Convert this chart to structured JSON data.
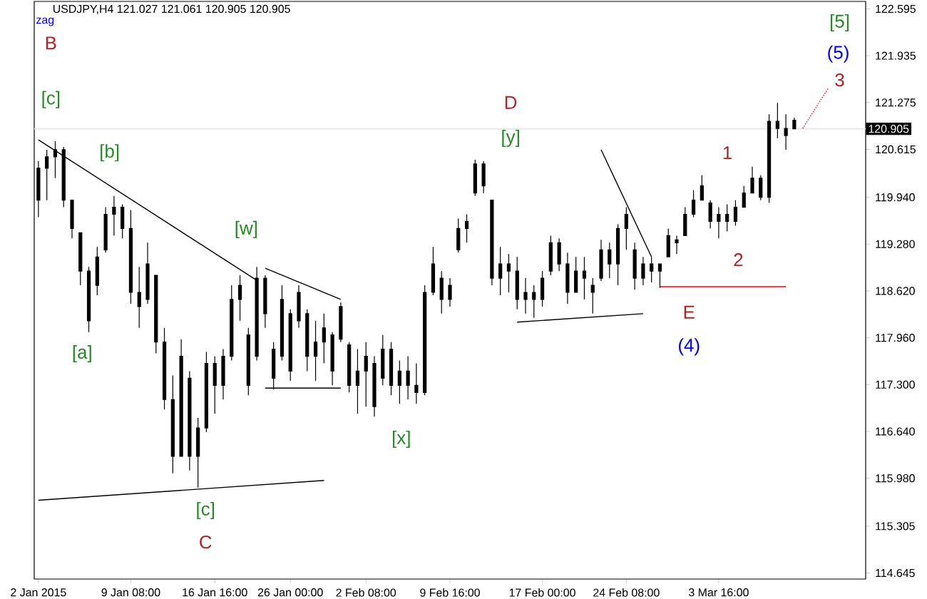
{
  "chart_data": {
    "type": "candlestick",
    "title": "USDJPY,H4  121.027 121.061 120.905 120.905",
    "color": "#000000",
    "categories": [
      "2 Jan 2015",
      null,
      null,
      null,
      null,
      null,
      null,
      null,
      null,
      null,
      null,
      "9 Jan 08:00",
      null,
      null,
      null,
      null,
      null,
      null,
      null,
      null,
      null,
      "16 Jan 16:00",
      null,
      null,
      null,
      null,
      null,
      null,
      null,
      null,
      "26 Jan 00:00",
      null,
      null,
      null,
      null,
      null,
      null,
      null,
      null,
      "2 Feb 08:00",
      null,
      null,
      null,
      null,
      null,
      null,
      null,
      null,
      null,
      "9 Feb 16:00",
      null,
      null,
      null,
      null,
      null,
      null,
      null,
      null,
      null,
      null,
      "17 Feb 00:00",
      null,
      null,
      null,
      null,
      null,
      null,
      null,
      null,
      null,
      "24 Feb 08:00",
      null,
      null,
      null,
      null,
      null,
      null,
      null,
      null,
      null,
      null,
      "3 Mar 16:00",
      null,
      null,
      null,
      null,
      null,
      null,
      null,
      null,
      null,
      null,
      null,
      null,
      null,
      null,
      null,
      null,
      null
    ],
    "ohlc": [
      [
        119.9,
        120.45,
        119.66,
        120.35
      ],
      [
        120.35,
        120.61,
        119.9,
        120.51
      ],
      [
        120.51,
        120.73,
        120.21,
        120.61
      ],
      [
        120.61,
        120.65,
        119.8,
        119.9
      ],
      [
        119.9,
        119.9,
        119.36,
        119.5
      ],
      [
        119.44,
        119.44,
        118.7,
        118.9
      ],
      [
        118.9,
        118.96,
        118.04,
        118.2
      ],
      [
        118.7,
        119.24,
        118.56,
        119.1
      ],
      [
        119.2,
        119.8,
        119.16,
        119.7
      ],
      [
        119.7,
        119.96,
        119.4,
        119.8
      ],
      [
        119.8,
        119.84,
        119.36,
        119.5
      ],
      [
        119.5,
        119.76,
        118.44,
        118.6
      ],
      [
        118.6,
        118.96,
        118.1,
        118.4
      ],
      [
        118.5,
        119.3,
        118.44,
        119.0
      ],
      [
        118.84,
        118.84,
        117.74,
        117.9
      ],
      [
        117.9,
        118.1,
        116.95,
        117.09
      ],
      [
        117.09,
        117.43,
        116.05,
        116.29
      ],
      [
        116.29,
        117.94,
        116.29,
        117.7
      ],
      [
        117.39,
        117.49,
        116.09,
        116.29
      ],
      [
        116.29,
        116.83,
        115.85,
        116.69
      ],
      [
        116.69,
        117.76,
        116.63,
        117.6
      ],
      [
        117.6,
        117.7,
        116.89,
        117.29
      ],
      [
        117.29,
        117.8,
        117.09,
        117.7
      ],
      [
        117.7,
        118.7,
        117.64,
        118.5
      ],
      [
        118.5,
        118.84,
        118.2,
        118.7
      ],
      [
        118.0,
        118.1,
        117.15,
        117.29
      ],
      [
        117.7,
        118.96,
        117.64,
        118.8
      ],
      [
        118.8,
        118.84,
        118.1,
        118.3
      ],
      [
        117.8,
        117.9,
        117.23,
        117.39
      ],
      [
        117.7,
        118.7,
        117.64,
        118.5
      ],
      [
        118.3,
        118.36,
        117.35,
        117.49
      ],
      [
        118.2,
        118.7,
        118.1,
        118.6
      ],
      [
        118.3,
        118.36,
        117.49,
        117.7
      ],
      [
        117.7,
        118.2,
        117.35,
        117.9
      ],
      [
        117.9,
        118.3,
        117.6,
        118.1
      ],
      [
        118.0,
        118.04,
        117.29,
        117.49
      ],
      [
        117.94,
        118.46,
        117.9,
        118.4
      ],
      [
        117.86,
        117.9,
        117.19,
        117.29
      ],
      [
        117.29,
        117.8,
        116.89,
        117.49
      ],
      [
        117.49,
        117.9,
        116.99,
        117.7
      ],
      [
        117.6,
        117.7,
        116.85,
        116.99
      ],
      [
        117.39,
        118.0,
        117.29,
        117.8
      ],
      [
        117.8,
        117.9,
        117.15,
        117.29
      ],
      [
        117.29,
        117.64,
        117.03,
        117.49
      ],
      [
        117.49,
        117.7,
        117.09,
        117.29
      ],
      [
        117.29,
        117.6,
        117.03,
        117.19
      ],
      [
        117.19,
        118.7,
        117.15,
        118.6
      ],
      [
        118.6,
        119.24,
        118.56,
        119.0
      ],
      [
        118.8,
        118.9,
        118.3,
        118.5
      ],
      [
        118.5,
        118.8,
        118.4,
        118.7
      ],
      [
        119.2,
        119.64,
        119.16,
        119.5
      ],
      [
        119.5,
        119.7,
        119.3,
        119.6
      ],
      [
        120.0,
        120.47,
        119.96,
        120.41
      ],
      [
        120.41,
        120.45,
        120.0,
        120.1
      ],
      [
        119.9,
        119.9,
        118.7,
        118.8
      ],
      [
        118.8,
        119.24,
        118.56,
        119.0
      ],
      [
        119.0,
        119.14,
        118.6,
        118.9
      ],
      [
        118.9,
        119.1,
        118.36,
        118.5
      ],
      [
        118.5,
        118.8,
        118.3,
        118.6
      ],
      [
        118.6,
        118.7,
        118.24,
        118.5
      ],
      [
        118.5,
        118.9,
        118.4,
        118.8
      ],
      [
        118.9,
        119.4,
        118.84,
        119.3
      ],
      [
        119.3,
        119.36,
        118.9,
        119.0
      ],
      [
        119.0,
        119.16,
        118.44,
        118.6
      ],
      [
        118.6,
        119.1,
        118.6,
        118.9
      ],
      [
        118.9,
        119.1,
        118.5,
        118.8
      ],
      [
        118.7,
        118.8,
        118.3,
        118.6
      ],
      [
        118.8,
        119.34,
        118.76,
        119.2
      ],
      [
        119.2,
        119.3,
        118.8,
        119.0
      ],
      [
        119.0,
        119.56,
        118.7,
        119.5
      ],
      [
        119.5,
        119.8,
        119.2,
        119.7
      ],
      [
        119.2,
        119.3,
        118.64,
        118.8
      ],
      [
        118.8,
        119.1,
        118.7,
        119.0
      ],
      [
        119.0,
        119.1,
        118.74,
        118.9
      ],
      [
        118.9,
        119.0,
        118.66,
        119.0
      ],
      [
        119.1,
        119.5,
        119.1,
        119.4
      ],
      [
        119.3,
        119.4,
        119.14,
        119.34
      ],
      [
        119.4,
        119.8,
        119.4,
        119.7
      ],
      [
        119.7,
        120.04,
        119.66,
        119.9
      ],
      [
        119.9,
        120.25,
        119.9,
        120.1
      ],
      [
        119.86,
        119.9,
        119.5,
        119.6
      ],
      [
        119.6,
        119.8,
        119.36,
        119.7
      ],
      [
        119.7,
        119.84,
        119.46,
        119.6
      ],
      [
        119.6,
        119.9,
        119.54,
        119.8
      ],
      [
        119.8,
        120.1,
        119.8,
        120.0
      ],
      [
        120.0,
        120.37,
        120.0,
        120.21
      ],
      [
        120.21,
        120.25,
        119.9,
        119.94
      ],
      [
        119.94,
        121.11,
        119.86,
        121.01
      ],
      [
        121.01,
        121.27,
        120.77,
        120.91
      ],
      [
        120.91,
        121.11,
        120.61,
        120.81
      ],
      [
        121.027,
        121.061,
        120.905,
        120.905
      ],
      null,
      null,
      null,
      null,
      null,
      null,
      null,
      null
    ],
    "ylim": [
      114.56,
      122.7
    ],
    "yticks": [
      {
        "value": 114.645,
        "label": "114.645"
      },
      {
        "value": 115.305,
        "label": "115.305"
      },
      {
        "value": 115.98,
        "label": "115.980"
      },
      {
        "value": 116.64,
        "label": "116.640"
      },
      {
        "value": 117.3,
        "label": "117.300"
      },
      {
        "value": 117.96,
        "label": "117.960"
      },
      {
        "value": 118.62,
        "label": "118.620"
      },
      {
        "value": 119.28,
        "label": "119.280"
      },
      {
        "value": 119.94,
        "label": "119.940"
      },
      {
        "value": 120.615,
        "label": "120.615"
      },
      {
        "value": 121.275,
        "label": "121.275"
      },
      {
        "value": 121.935,
        "label": "121.935"
      },
      {
        "value": 122.595,
        "label": "122.595"
      }
    ],
    "series": [
      {
        "type": "line",
        "color": "#000000",
        "values": [
          120.75,
          null,
          null,
          null,
          null,
          null,
          null,
          null,
          null,
          null,
          null,
          null,
          null,
          null,
          null,
          null,
          null,
          null,
          null,
          null,
          null,
          null,
          null,
          null,
          null,
          null,
          118.77,
          null,
          null,
          null,
          null,
          null,
          null,
          null,
          null,
          null,
          null,
          null,
          null,
          null,
          null,
          null,
          null,
          null,
          null,
          null,
          null,
          null,
          null,
          null,
          null,
          null,
          null,
          null,
          null,
          null,
          null,
          null,
          null,
          null,
          null,
          null,
          null,
          null,
          null,
          null,
          null,
          null,
          null,
          null,
          null,
          null,
          null,
          null,
          null,
          null,
          null,
          null,
          null,
          null,
          null,
          null,
          null,
          null,
          null,
          null,
          null,
          null,
          null,
          null,
          null,
          null,
          null,
          null,
          null,
          null,
          null,
          null,
          null
        ]
      },
      {
        "type": "line",
        "color": "#000000",
        "values": [
          null,
          null,
          null,
          null,
          null,
          null,
          null,
          null,
          null,
          null,
          null,
          null,
          null,
          null,
          null,
          null,
          null,
          null,
          null,
          null,
          null,
          null,
          null,
          null,
          null,
          null,
          null,
          118.94,
          null,
          null,
          null,
          null,
          null,
          null,
          null,
          null,
          118.5,
          null,
          null,
          null,
          null,
          null,
          null,
          null,
          null,
          null,
          null,
          null,
          null,
          null,
          null,
          null,
          null,
          null,
          null,
          null,
          null,
          null,
          null,
          null,
          null,
          null,
          null,
          null,
          null,
          null,
          null,
          null,
          null,
          null,
          null,
          null,
          null,
          null,
          null,
          null,
          null,
          null,
          null,
          null,
          null,
          null,
          null,
          null,
          null,
          null,
          null,
          null,
          null,
          null,
          null,
          null,
          null,
          null,
          null,
          null,
          null,
          null,
          null
        ]
      },
      {
        "type": "line",
        "color": "#000000",
        "values": [
          null,
          null,
          null,
          null,
          null,
          null,
          null,
          null,
          null,
          null,
          null,
          null,
          null,
          null,
          null,
          null,
          null,
          null,
          null,
          null,
          null,
          null,
          null,
          null,
          null,
          null,
          null,
          117.25,
          null,
          null,
          null,
          null,
          null,
          null,
          null,
          null,
          117.25,
          null,
          null,
          null,
          null,
          null,
          null,
          null,
          null,
          null,
          null,
          null,
          null,
          null,
          null,
          null,
          null,
          null,
          null,
          null,
          null,
          null,
          null,
          null,
          null,
          null,
          null,
          null,
          null,
          null,
          null,
          null,
          null,
          null,
          null,
          null,
          null,
          null,
          null,
          null,
          null,
          null,
          null,
          null,
          null,
          null,
          null,
          null,
          null,
          null,
          null,
          null,
          null,
          null,
          null,
          null,
          null,
          null,
          null,
          null,
          null,
          null,
          null
        ]
      },
      {
        "type": "line",
        "color": "#000000",
        "values": [
          115.67,
          null,
          null,
          null,
          null,
          null,
          null,
          null,
          null,
          null,
          null,
          null,
          null,
          null,
          null,
          null,
          null,
          null,
          null,
          null,
          null,
          null,
          null,
          null,
          null,
          null,
          null,
          null,
          null,
          null,
          null,
          null,
          null,
          null,
          115.95,
          null,
          null,
          null,
          null,
          null,
          null,
          null,
          null,
          null,
          null,
          null,
          null,
          null,
          null,
          null,
          null,
          null,
          null,
          null,
          null,
          null,
          null,
          null,
          null,
          null,
          null,
          null,
          null,
          null,
          null,
          null,
          null,
          null,
          null,
          null,
          null,
          null,
          null,
          null,
          null,
          null,
          null,
          null,
          null,
          null,
          null,
          null,
          null,
          null,
          null,
          null,
          null,
          null,
          null,
          null,
          null,
          null,
          null,
          null,
          null,
          null,
          null,
          null,
          null
        ]
      },
      {
        "type": "line",
        "color": "#000000",
        "values": [
          null,
          null,
          null,
          null,
          null,
          null,
          null,
          null,
          null,
          null,
          null,
          null,
          null,
          null,
          null,
          null,
          null,
          null,
          null,
          null,
          null,
          null,
          null,
          null,
          null,
          null,
          null,
          null,
          null,
          null,
          null,
          null,
          null,
          null,
          null,
          null,
          null,
          null,
          null,
          null,
          null,
          null,
          null,
          null,
          null,
          null,
          null,
          null,
          null,
          null,
          null,
          null,
          null,
          null,
          null,
          null,
          null,
          118.18,
          null,
          null,
          null,
          null,
          null,
          null,
          null,
          null,
          null,
          null,
          null,
          null,
          null,
          null,
          118.3,
          null,
          null,
          null,
          null,
          null,
          null,
          null,
          null,
          null,
          null,
          null,
          null,
          null,
          null,
          null,
          null,
          null,
          null,
          null,
          null,
          null,
          null,
          null,
          null,
          null,
          null
        ]
      },
      {
        "type": "line",
        "color": "#000000",
        "values": [
          null,
          null,
          null,
          null,
          null,
          null,
          null,
          null,
          null,
          null,
          null,
          null,
          null,
          null,
          null,
          null,
          null,
          null,
          null,
          null,
          null,
          null,
          null,
          null,
          null,
          null,
          null,
          null,
          null,
          null,
          null,
          null,
          null,
          null,
          null,
          null,
          null,
          null,
          null,
          null,
          null,
          null,
          null,
          null,
          null,
          null,
          null,
          null,
          null,
          null,
          null,
          null,
          null,
          null,
          null,
          null,
          null,
          null,
          null,
          null,
          null,
          null,
          null,
          null,
          null,
          null,
          null,
          120.61,
          null,
          null,
          null,
          null,
          null,
          119.1,
          null,
          null,
          null,
          null,
          null,
          null,
          null,
          null,
          null,
          null,
          null,
          null,
          null,
          null,
          null,
          null,
          null,
          null,
          null,
          null,
          null,
          null,
          null,
          null,
          null
        ]
      },
      {
        "type": "line",
        "color": "#ff0000",
        "values": [
          null,
          null,
          null,
          null,
          null,
          null,
          null,
          null,
          null,
          null,
          null,
          null,
          null,
          null,
          null,
          null,
          null,
          null,
          null,
          null,
          null,
          null,
          null,
          null,
          null,
          null,
          null,
          null,
          null,
          null,
          null,
          null,
          null,
          null,
          null,
          null,
          null,
          null,
          null,
          null,
          null,
          null,
          null,
          null,
          null,
          null,
          null,
          null,
          null,
          null,
          null,
          null,
          null,
          null,
          null,
          null,
          null,
          null,
          null,
          null,
          null,
          null,
          null,
          null,
          null,
          null,
          null,
          null,
          null,
          null,
          null,
          null,
          null,
          null,
          118.68,
          null,
          null,
          null,
          null,
          null,
          null,
          null,
          null,
          null,
          null,
          null,
          null,
          null,
          null,
          118.68,
          null,
          null,
          null,
          null,
          null,
          null,
          null,
          null,
          null
        ]
      },
      {
        "type": "line",
        "color": "#ff0000",
        "line_style": "dotted",
        "values": [
          null,
          null,
          null,
          null,
          null,
          null,
          null,
          null,
          null,
          null,
          null,
          null,
          null,
          null,
          null,
          null,
          null,
          null,
          null,
          null,
          null,
          null,
          null,
          null,
          null,
          null,
          null,
          null,
          null,
          null,
          null,
          null,
          null,
          null,
          null,
          null,
          null,
          null,
          null,
          null,
          null,
          null,
          null,
          null,
          null,
          null,
          null,
          null,
          null,
          null,
          null,
          null,
          null,
          null,
          null,
          null,
          null,
          null,
          null,
          null,
          null,
          null,
          null,
          null,
          null,
          null,
          null,
          null,
          null,
          null,
          null,
          null,
          null,
          null,
          null,
          null,
          null,
          null,
          null,
          null,
          null,
          null,
          null,
          null,
          null,
          null,
          null,
          null,
          null,
          null,
          null,
          120.91,
          null,
          null,
          121.47,
          null,
          null,
          null,
          null
        ]
      }
    ],
    "ref_lines": [
      {
        "axis": "y",
        "value": 120.905,
        "label": "120.905",
        "color": "#e6e6e6"
      }
    ],
    "annotations": [
      "zag",
      "B",
      "[c]",
      "[b]",
      "[a]",
      "[c]",
      "C",
      "[w]",
      "[x]",
      "[y]",
      "D",
      "E",
      "(4)",
      "1",
      "2",
      "3",
      "(5)",
      "[5]"
    ]
  }
}
